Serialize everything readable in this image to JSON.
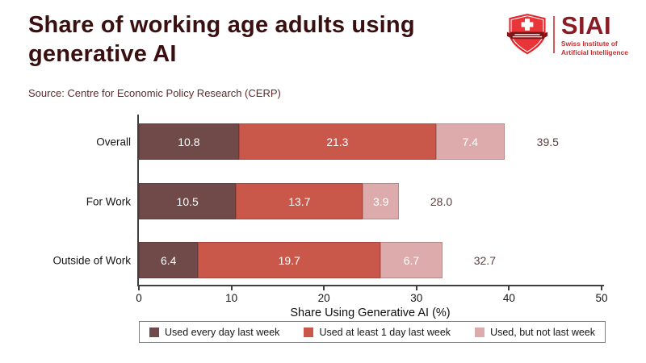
{
  "header": {
    "title_line1": "Share of working age adults using",
    "title_line2": "generative AI",
    "source": "Source: Centre for Economic Policy Research (CERP)"
  },
  "logo": {
    "acronym": "SIAI",
    "name_line1": "Swiss Institute of",
    "name_line2": "Artificial Intelligence",
    "shield_color": "#e0262a",
    "banner_color": "#7e1416",
    "acronym_color": "#8c1c24",
    "name_color": "#c62f31"
  },
  "chart_data": {
    "type": "bar",
    "orientation": "horizontal",
    "stacked": true,
    "grid": false,
    "categories": [
      "Overall",
      "For Work",
      "Outside of Work"
    ],
    "series": [
      {
        "name": "Used every day last week",
        "color": "#6f4a48",
        "values": [
          10.8,
          10.5,
          6.4
        ]
      },
      {
        "name": "Used at least 1 day last week",
        "color": "#c9584b",
        "values": [
          21.3,
          13.7,
          19.7
        ]
      },
      {
        "name": "Used, but not last week",
        "color": "#ddabab",
        "values": [
          7.4,
          3.9,
          6.7
        ]
      }
    ],
    "totals": [
      39.5,
      28.0,
      32.7
    ],
    "totals_display": [
      "39.5",
      "28.0",
      "32.7"
    ],
    "xlabel": "Share Using Generative AI (%)",
    "xlim": [
      0,
      50
    ],
    "xticks": [
      0,
      10,
      20,
      30,
      40,
      50
    ],
    "xtick_labels": [
      "0",
      "10",
      "20",
      "30",
      "40",
      "50"
    ],
    "legend_position": "bottom"
  }
}
